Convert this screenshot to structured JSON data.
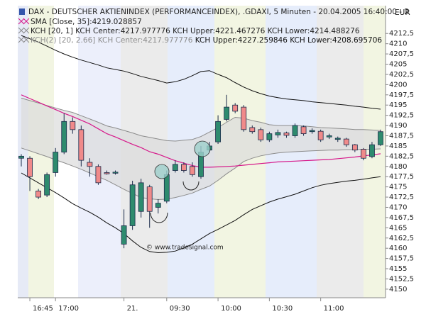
{
  "chart_data": {
    "type": "candlestick",
    "title": "DAX - DEUTSCHER AKTIENINDEX (PERFORMANCEINDEX), .GDAXI, 5 Minuten - 20.04.2005 16:40:00 - 2",
    "currency": "EUR",
    "watermark": "© www.tradesignal.com",
    "categories": [
      null,
      "16:45",
      null,
      null,
      "17:00",
      null,
      null,
      null,
      null,
      null,
      null,
      null,
      "21.",
      null,
      null,
      null,
      null,
      "09:30",
      null,
      null,
      null,
      null,
      null,
      "10:00",
      null,
      null,
      null,
      null,
      null,
      "10:30",
      null,
      null,
      null,
      null,
      null,
      "11:00",
      null,
      null,
      null,
      null,
      null,
      null,
      null
    ],
    "open": [
      4182,
      4182,
      4174,
      4173,
      4178.5,
      4183.5,
      4191,
      4189,
      4181,
      4180,
      4178.5,
      4178.4,
      4161,
      4165.5,
      4169,
      4175,
      4170,
      4171.5,
      4179,
      4180.5,
      4180,
      4177.5,
      4184,
      4186,
      4191.5,
      4195,
      4194.5,
      4189.5,
      4189,
      4186.5,
      4187.7,
      4188.2,
      4187.5,
      4189.7,
      4188.5,
      4188.6,
      4187.2,
      4186.6,
      4186.7,
      4185.3,
      4184.2,
      4182.4,
      4185.3
    ],
    "high": [
      4183,
      4182.5,
      4174.5,
      4178.5,
      4184.5,
      4193,
      4192,
      4190,
      4182,
      4180.5,
      4179,
      4179,
      4169.5,
      4176.5,
      4177,
      4175.5,
      4172,
      4179,
      4181.5,
      4181,
      4181,
      4185,
      4186,
      4192.5,
      4197.5,
      4195.5,
      4195,
      4190,
      4189.5,
      4188.5,
      4189,
      4188.5,
      4190.5,
      4190,
      4189.3,
      4189,
      4188,
      4187.3,
      4187,
      4185.5,
      4184.5,
      4186,
      4189
    ],
    "low": [
      4180,
      4174,
      4172,
      4172.5,
      4177.5,
      4183,
      4188,
      4180,
      4177.5,
      4175.5,
      4178,
      4178,
      4160,
      4164.5,
      4167.5,
      4165,
      4168.5,
      4171,
      4178.5,
      4178.5,
      4177.5,
      4177,
      4183.5,
      4185.5,
      4191,
      4193,
      4188.5,
      4188,
      4186,
      4186,
      4187,
      4187,
      4187,
      4187.5,
      4188,
      4186,
      4186.7,
      4186,
      4184.8,
      4183.5,
      4181.5,
      4182,
      4185
    ],
    "close": [
      4182.5,
      4177.5,
      4172.5,
      4178,
      4183.5,
      4191,
      4189,
      4181.5,
      4180,
      4176,
      4178.2,
      4178.6,
      4165.5,
      4175.5,
      4176,
      4169,
      4171,
      4178,
      4180.5,
      4179,
      4178,
      4183.5,
      4185,
      4191,
      4194.5,
      4193.5,
      4189,
      4188.5,
      4186.5,
      4188,
      4188.3,
      4187.6,
      4190,
      4188,
      4188.8,
      4186.5,
      4187.5,
      4186.9,
      4185.3,
      4184,
      4182,
      4185.3,
      4188.5
    ],
    "up_color": "#2e8b6e",
    "down_color": "#f08a8a",
    "series": [
      {
        "name": "SMA [Close, 35]:4219.028857",
        "color": "#d6188a",
        "values": [
          4197.5,
          4196.6,
          4195.7,
          4194.8,
          4193.9,
          4193.0,
          4192.2,
          4191.3,
          4190.4,
          4189.2,
          4188.0,
          4187.2,
          4186.3,
          4185.4,
          4184.6,
          4183.6,
          4183.0,
          4182.2,
          4181.4,
          4180.8,
          4180.2,
          4179.8,
          4179.8,
          4179.9,
          4180.0,
          4180.1,
          4180.3,
          4180.5,
          4180.7,
          4180.9,
          4181.1,
          4181.2,
          4181.3,
          4181.4,
          4181.5,
          4181.6,
          4181.7,
          4181.9,
          4182.1,
          4182.3,
          4182.6,
          4182.8,
          4183.1
        ]
      }
    ],
    "bands": [
      {
        "name": "KCH [20, 1] KCH Center:4217.977776 KCH Upper:4221.467276 KCH Lower:4214.488276",
        "color": "#8c8c8c",
        "fill": "#dcdcdc",
        "upper": [
          4196.7,
          4196.1,
          4195.5,
          4194.9,
          4194.3,
          4193.7,
          4193.2,
          4192.4,
          4191.6,
          4190.8,
          4189.9,
          4189.4,
          4188.8,
          4188.2,
          4187.5,
          4187.1,
          4186.7,
          4186.3,
          4186.2,
          4186.4,
          4186.6,
          4187.3,
          4188.4,
          4189.5,
          4190.8,
          4192.0,
          4191.8,
          4191.2,
          4190.8,
          4190.2,
          4190.0,
          4190.0,
          4190.0,
          4189.9,
          4189.7,
          4189.5,
          4189.4,
          4189.3,
          4189.2,
          4189.0,
          4189.0,
          4188.9,
          4188.8
        ],
        "lower": [
          4184.5,
          4183.8,
          4183.1,
          4182.4,
          4181.6,
          4180.9,
          4180.1,
          4179.3,
          4178.4,
          4177.5,
          4176.6,
          4175.5,
          4174.4,
          4173.4,
          4172.4,
          4172.1,
          4171.9,
          4172.0,
          4172.4,
          4172.9,
          4173.5,
          4174.4,
          4175.2,
          4176.6,
          4178.2,
          4179.6,
          4181.2,
          4182.0,
          4182.6,
          4183.0,
          4183.3,
          4183.5,
          4183.6,
          4183.7,
          4183.8,
          4183.9,
          4184.0,
          4184.0,
          4184.1,
          4184.1,
          4184.2,
          4184.2,
          4184.3
        ]
      },
      {
        "name": "KCH(2) [20, 2.66] KCH Center:4217.977776",
        "name2": "KCH Upper:4227.259846 KCH Lower:4208.695706",
        "color": "#111111",
        "fill": null,
        "upper": [
          4212.0,
          4211.2,
          4210.4,
          4209.4,
          4208.4,
          4207.5,
          4206.7,
          4206.0,
          4205.4,
          4204.8,
          4204.1,
          4203.7,
          4203.3,
          4202.7,
          4202.0,
          4201.5,
          4201.0,
          4200.4,
          4200.7,
          4201.3,
          4202.2,
          4203.2,
          4203.4,
          4202.5,
          4201.7,
          4200.5,
          4199.4,
          4198.5,
          4197.8,
          4197.2,
          4196.8,
          4196.5,
          4196.3,
          4196.1,
          4195.8,
          4195.6,
          4195.4,
          4195.2,
          4195.0,
          4194.7,
          4194.5,
          4194.2,
          4194.0
        ],
        "lower": [
          4178.4,
          4177.2,
          4176.0,
          4174.8,
          4173.6,
          4172.3,
          4170.9,
          4169.8,
          4168.8,
          4167.6,
          4166.2,
          4165.0,
          4163.6,
          4161.8,
          4160.2,
          4159.2,
          4158.9,
          4159.0,
          4159.3,
          4160.1,
          4161.0,
          4162.3,
          4163.6,
          4164.6,
          4165.7,
          4166.8,
          4168.2,
          4169.5,
          4170.4,
          4171.3,
          4172.0,
          4172.6,
          4173.2,
          4174.0,
          4174.8,
          4175.4,
          4175.8,
          4176.1,
          4176.4,
          4176.6,
          4176.9,
          4177.2,
          4177.5
        ]
      }
    ],
    "ylim": [
      4147.9,
      4219.3
    ],
    "yticks": [
      4150,
      {
        "value": 4152.5,
        "label": "4152,5"
      },
      4155,
      {
        "value": 4157.5,
        "label": "4157,5"
      },
      4160,
      {
        "value": 4162.5,
        "label": "4162,5"
      },
      4165,
      {
        "value": 4167.5,
        "label": "4167,5"
      },
      4170,
      {
        "value": 4172.5,
        "label": "4172,5"
      },
      4175,
      {
        "value": 4177.5,
        "label": "4177,5"
      },
      4180,
      {
        "value": 4182.5,
        "label": "4182,5"
      },
      4185,
      {
        "value": 4187.5,
        "label": "4187,5"
      },
      4190,
      {
        "value": 4192.5,
        "label": "4192,5"
      },
      4195,
      {
        "value": 4197.5,
        "label": "4197,5"
      },
      4200,
      {
        "value": 4202.5,
        "label": "4202,5"
      },
      4205,
      {
        "value": 4207.5,
        "label": "4207,5"
      },
      4210,
      {
        "value": 4212.5,
        "label": "4212,5"
      }
    ]
  }
}
